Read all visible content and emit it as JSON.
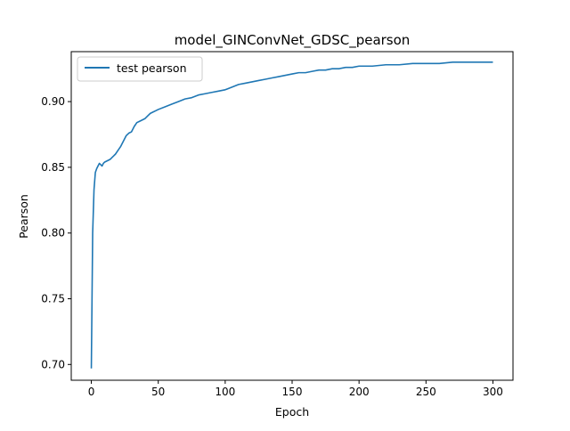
{
  "chart_data": {
    "type": "line",
    "title": "model_GINConvNet_GDSC_pearson",
    "xlabel": "Epoch",
    "ylabel": "Pearson",
    "xlim": [
      -15,
      315
    ],
    "ylim": [
      0.688,
      0.938
    ],
    "xticks": [
      0,
      50,
      100,
      150,
      200,
      250,
      300
    ],
    "xtick_labels": [
      "0",
      "50",
      "100",
      "150",
      "200",
      "250",
      "300"
    ],
    "yticks": [
      0.7,
      0.75,
      0.8,
      0.85,
      0.9
    ],
    "ytick_labels": [
      "0.70",
      "0.75",
      "0.80",
      "0.85",
      "0.90"
    ],
    "grid": false,
    "legend_position": "top-left",
    "series": [
      {
        "name": "test pearson",
        "color": "#1f77b4",
        "x": [
          0,
          1,
          2,
          3,
          4,
          5,
          6,
          7,
          8,
          9,
          10,
          12,
          14,
          16,
          18,
          20,
          22,
          24,
          26,
          28,
          30,
          32,
          34,
          36,
          38,
          40,
          42,
          44,
          46,
          48,
          50,
          55,
          60,
          65,
          70,
          75,
          80,
          85,
          90,
          95,
          100,
          105,
          110,
          115,
          120,
          125,
          130,
          135,
          140,
          145,
          150,
          155,
          160,
          165,
          170,
          175,
          180,
          185,
          190,
          195,
          200,
          210,
          220,
          230,
          240,
          250,
          260,
          270,
          280,
          290,
          300
        ],
        "values": [
          0.697,
          0.8,
          0.833,
          0.846,
          0.849,
          0.851,
          0.853,
          0.852,
          0.851,
          0.853,
          0.854,
          0.855,
          0.856,
          0.858,
          0.86,
          0.863,
          0.866,
          0.87,
          0.874,
          0.876,
          0.877,
          0.881,
          0.884,
          0.885,
          0.886,
          0.887,
          0.889,
          0.891,
          0.892,
          0.893,
          0.894,
          0.896,
          0.898,
          0.9,
          0.902,
          0.903,
          0.905,
          0.906,
          0.907,
          0.908,
          0.909,
          0.911,
          0.913,
          0.914,
          0.915,
          0.916,
          0.917,
          0.918,
          0.919,
          0.92,
          0.921,
          0.922,
          0.922,
          0.923,
          0.924,
          0.924,
          0.925,
          0.925,
          0.926,
          0.926,
          0.927,
          0.927,
          0.928,
          0.928,
          0.929,
          0.929,
          0.929,
          0.93,
          0.93,
          0.93,
          0.93
        ]
      }
    ]
  }
}
